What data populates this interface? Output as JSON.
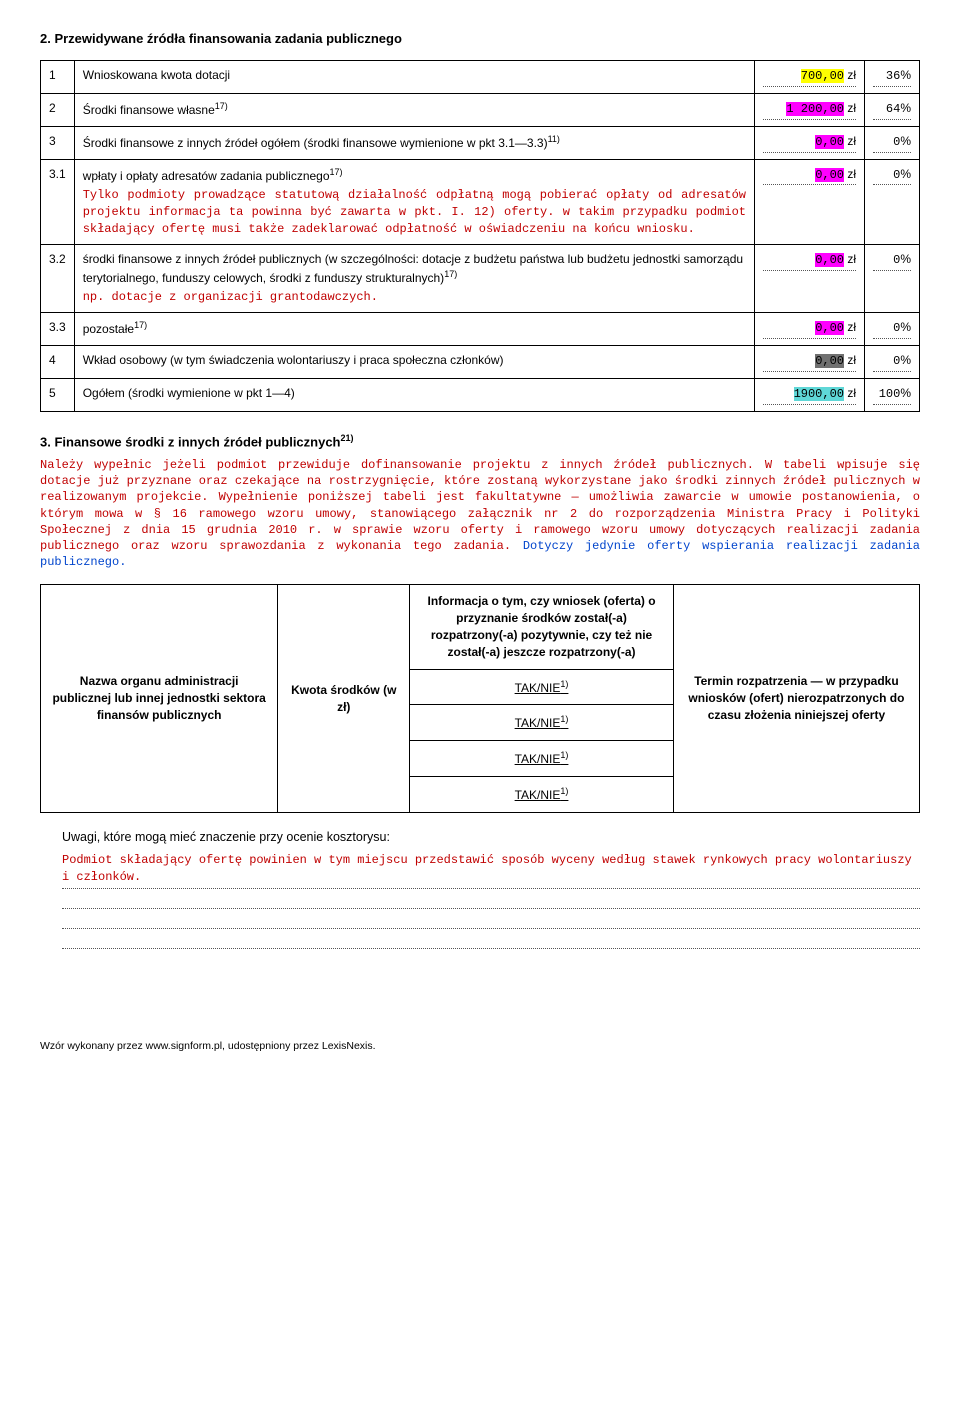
{
  "section2": {
    "title": "2. Przewidywane źródła finansowania zadania publicznego",
    "rows": [
      {
        "num": "1",
        "label": "Wnioskowana kwota dotacji",
        "amount": "700,00",
        "amount_hl": "highlight-yellow",
        "pct": "36",
        "note": ""
      },
      {
        "num": "2",
        "label_html": "Środki finansowe własne<sup>17)</sup>",
        "amount": "1 200,00",
        "amount_hl": "highlight-magenta",
        "pct": "64",
        "note": ""
      },
      {
        "num": "3",
        "label_html": "Środki finansowe z innych źródeł ogółem (środki finansowe wymienione w pkt 3.1—3.3)<sup>11)</sup>",
        "amount": "0,00",
        "amount_hl": "highlight-magenta",
        "pct": "0",
        "note": ""
      },
      {
        "num": "3.1",
        "label_html": "wpłaty i opłaty adresatów zadania publicznego<sup>17)</sup>",
        "note": "Tylko podmioty prowadzące statutową działalność odpłatną mogą pobierać opłaty od adresatów projektu informacja ta powinna być zawarta w pkt. I. 12) oferty. w takim przypadku podmiot składający ofertę musi także zadeklarować odpłatność w oświadczeniu na końcu wniosku.",
        "amount": "0,00",
        "amount_hl": "highlight-magenta",
        "pct": "0"
      },
      {
        "num": "3.2",
        "label_html": "środki finansowe z innych źródeł publicznych (w szczególności: dotacje z budżetu państwa lub budżetu jednostki samorządu terytorialnego, funduszy celowych, środki z funduszy strukturalnych)<sup>17)</sup>",
        "note": "np. dotacje z organizacji grantodawczych.",
        "amount": "0,00",
        "amount_hl": "highlight-magenta",
        "pct": "0"
      },
      {
        "num": "3.3",
        "label_html": "pozostałe<sup>17)</sup>",
        "amount": "0,00",
        "amount_hl": "highlight-magenta",
        "pct": "0",
        "note": ""
      },
      {
        "num": "4",
        "label": "Wkład osobowy (w tym świadczenia wolontariuszy i praca społeczna członków)",
        "amount": "0,00",
        "amount_hl": "highlight-dark",
        "pct": "0",
        "note": ""
      },
      {
        "num": "5",
        "label": "Ogółem (środki wymienione w pkt 1—4)",
        "amount": "1900,00",
        "amount_hl": "highlight-cyan",
        "pct": "100",
        "note": ""
      }
    ],
    "zl": "zł",
    "pct_sign": "%"
  },
  "section3": {
    "title_html": "3. Finansowe środki z innych źródeł publicznych<sup>21)</sup>",
    "body_red": "Należy wypełnic jeżeli podmiot przewiduje dofinansowanie projektu z innych źródeł publicznych. W tabeli wpisuje się dotacje już przyznane oraz czekające na rostrzygnięcie, które zostaną wykorzystane jako środki zinnych źródeł pulicznych w realizowanym projekcie. Wypełnienie poniższej tabeli jest fakultatywne — umożliwia zawarcie w umowie postanowienia, o którym mowa w § 16 ramowego wzoru umowy, stanowiącego załącznik nr 2 do rozporządzenia Ministra Pracy i Polityki Społecznej z dnia 15 grudnia 2010 r. w sprawie wzoru oferty i ramowego wzoru umowy dotyczących realizacji zadania publicznego oraz wzoru sprawozdania z wykonania tego zadania.",
    "body_blue": " Dotyczy jedynie oferty wspierania realizacji zadania publicznego.",
    "table": {
      "headers": [
        "Nazwa organu administracji publicznej lub innej jednostki sektora finansów publicznych",
        "Kwota środków (w zł)",
        "Informacja o tym, czy wniosek (oferta) o przyznanie środków został(-a) rozpatrzony(-a) pozytywnie, czy też nie został(-a) jeszcze rozpatrzony(-a)",
        "Termin rozpatrzenia — w przypadku wniosków (ofert) nierozpatrzonych do czasu złożenia niniejszej oferty"
      ],
      "taknie_html": "TAK/NIE<sup>1)</sup>"
    }
  },
  "uwagi": {
    "title": "Uwagi, które mogą mieć znaczenie przy ocenie kosztorysu:",
    "body": "Podmiot składający ofertę powinien w tym miejscu przedstawić sposób wyceny według stawek rynkowych pracy wolontariuszy i członków."
  },
  "footer": "Wzór wykonany przez www.signform.pl, udostępniony przez LexisNexis."
}
